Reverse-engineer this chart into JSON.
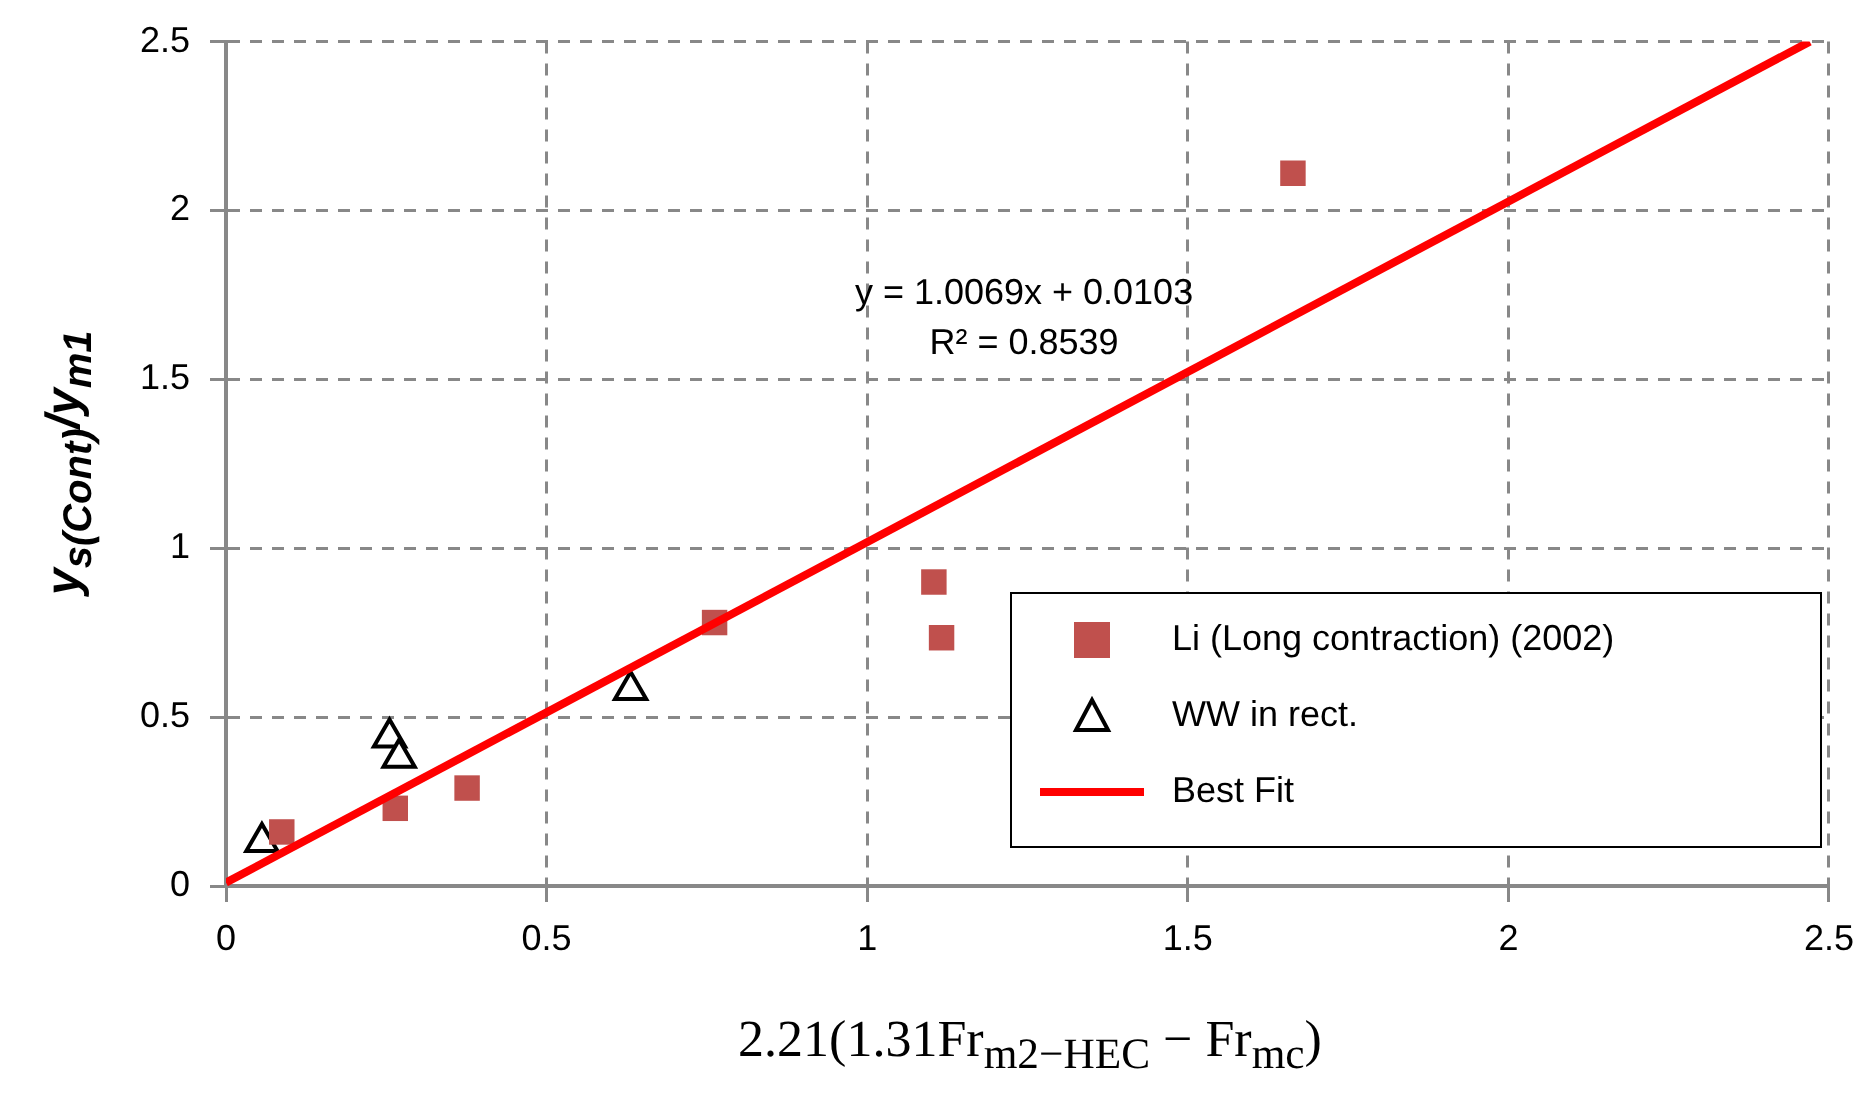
{
  "chart_data": {
    "type": "scatter",
    "xlabel": "2.21(1.31Fr$_{m2−HEC}$ − Fr$_{mc}$)",
    "ylabel": "y$_{s(Cont)}$/y$_{m1}$",
    "xlim": [
      0,
      2.5
    ],
    "xticks": [
      0,
      0.5,
      1,
      1.5,
      2,
      2.5
    ],
    "ylim": [
      0,
      2.5
    ],
    "yticks": [
      0,
      0.5,
      1,
      1.5,
      2,
      2.5
    ],
    "grid": true,
    "legend": "bottom right",
    "annotations": [
      "y = 1.0069x + 0.0103",
      "R² = 0.8539"
    ],
    "series": [
      {
        "name": "Li (Long contraction) (2002)",
        "color": "#c0504d",
        "marker": "square",
        "x": [
          0.087,
          0.264,
          0.376,
          0.762,
          1.104,
          1.116,
          1.664
        ],
        "values": [
          0.16,
          0.23,
          0.29,
          0.78,
          0.9,
          0.735,
          2.11
        ]
      },
      {
        "name": "WW in rect.",
        "color": "#000000",
        "marker": "triangle",
        "x": [
          0.056,
          0.255,
          0.27,
          0.631
        ],
        "values": [
          0.13,
          0.44,
          0.38,
          0.58
        ]
      },
      {
        "name": "Best Fit",
        "type": "line",
        "color": "#ff0000",
        "marker": "none",
        "x": [
          0,
          2.47
        ],
        "values": [
          0.01,
          2.5
        ]
      }
    ]
  }
}
